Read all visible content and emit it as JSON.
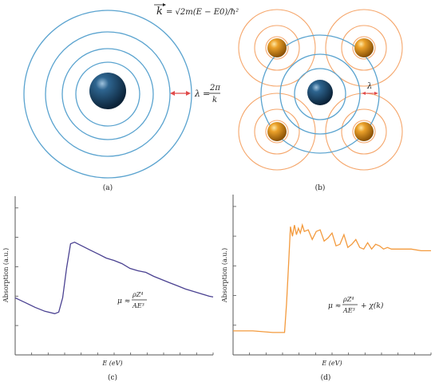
{
  "panels": {
    "a": {
      "caption": "(a)",
      "k_vector": "k",
      "k_formula": "= √2m(E − E0)/ħ²",
      "lambda": "λ",
      "lambda_eq": "=",
      "two_pi": "2π",
      "k_denominator": "k",
      "colors": {
        "rings": "#5aa3cf",
        "atom": "#123d63",
        "arrow": "#e04b4b"
      }
    },
    "b": {
      "caption": "(b)",
      "lambda": "λ",
      "colors": {
        "center_rings": "#5aa3cf",
        "neighbor_rings": "#f5a66b",
        "neighbor_atom": "#d98a10",
        "center_atom": "#123d63"
      }
    },
    "c": {
      "caption": "(c)",
      "ylabel": "Absorption (a.u.)",
      "xlabel": "E (eV)",
      "formula_lhs": "μ ≈",
      "formula_num": "ρZ⁴",
      "formula_den": "AE³",
      "line_color": "#4a4191"
    },
    "d": {
      "caption": "(d)",
      "ylabel": "Absorption (a.u.)",
      "xlabel": "E (eV)",
      "formula_lhs": "μ ≈",
      "formula_num": "ρZ⁴",
      "formula_den": "AE³",
      "formula_rhs": "+ χ(k)",
      "line_color": "#f39a3d"
    }
  },
  "chart_data": [
    {
      "type": "line",
      "xlabel": "E (eV)",
      "ylabel": "Absorption (a.u.)",
      "xlim": [
        0,
        10
      ],
      "ylim": [
        0,
        10
      ],
      "x": [
        0,
        0.5,
        1.0,
        1.5,
        2.0,
        2.2,
        2.4,
        2.6,
        2.8,
        3.0,
        3.4,
        3.8,
        4.2,
        4.6,
        5.0,
        5.4,
        5.8,
        6.2,
        6.6,
        7.0,
        7.4,
        7.8,
        8.2,
        8.6,
        9.0,
        9.4,
        9.8,
        10
      ],
      "y": [
        3.6,
        3.3,
        3.0,
        2.75,
        2.6,
        2.7,
        3.6,
        5.5,
        7.0,
        7.1,
        6.85,
        6.6,
        6.35,
        6.1,
        5.95,
        5.75,
        5.45,
        5.3,
        5.2,
        4.95,
        4.75,
        4.55,
        4.35,
        4.15,
        4.0,
        3.85,
        3.7,
        3.65
      ]
    },
    {
      "type": "line",
      "xlabel": "E (eV)",
      "ylabel": "Absorption (a.u.)",
      "xlim": [
        0,
        10
      ],
      "ylim": [
        0,
        10
      ],
      "x": [
        0,
        1.0,
        2.0,
        2.6,
        2.7,
        2.8,
        2.9,
        3.0,
        3.1,
        3.2,
        3.3,
        3.4,
        3.5,
        3.6,
        3.8,
        4.0,
        4.2,
        4.4,
        4.6,
        4.8,
        5.0,
        5.2,
        5.4,
        5.6,
        5.8,
        6.0,
        6.2,
        6.4,
        6.6,
        6.8,
        7.0,
        7.2,
        7.4,
        7.6,
        7.8,
        8.0,
        8.5,
        9.0,
        9.5,
        10
      ],
      "y": [
        1.5,
        1.5,
        1.4,
        1.4,
        3.2,
        5.5,
        8.0,
        7.4,
        8.1,
        7.5,
        7.9,
        7.6,
        8.1,
        7.7,
        7.8,
        7.2,
        7.7,
        7.8,
        7.1,
        7.3,
        7.6,
        6.8,
        6.9,
        7.5,
        6.7,
        6.9,
        7.2,
        6.7,
        6.6,
        7.0,
        6.6,
        6.9,
        6.8,
        6.6,
        6.7,
        6.6,
        6.6,
        6.6,
        6.5,
        6.5
      ]
    }
  ]
}
